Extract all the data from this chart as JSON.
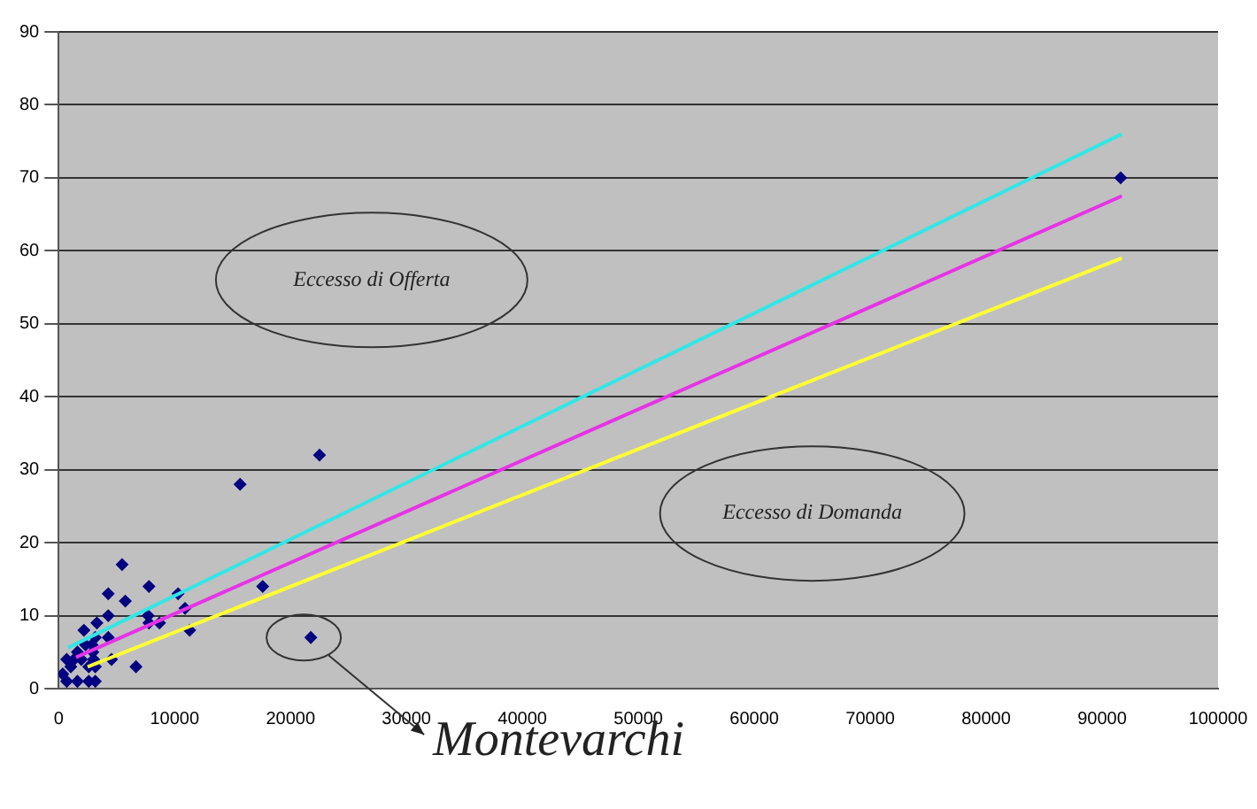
{
  "chart_data": {
    "type": "scatter",
    "marker": "diamond",
    "grid": "y",
    "legend": false,
    "xlim": [
      0,
      100000
    ],
    "xticks": [
      0,
      10000,
      20000,
      30000,
      40000,
      50000,
      60000,
      70000,
      80000,
      90000,
      100000
    ],
    "ylim": [
      0,
      90
    ],
    "yticks": [
      0,
      10,
      20,
      30,
      40,
      50,
      60,
      70,
      80,
      90
    ],
    "series": [
      {
        "color": "#000080",
        "x": [
          350,
          700,
          700,
          1050,
          1330,
          1620,
          1620,
          1960,
          2180,
          2320,
          2600,
          2600,
          2880,
          3160,
          2950,
          3020,
          3160,
          3160,
          3300,
          4280,
          4280,
          4280,
          4560,
          5470,
          5750,
          6670,
          7720,
          7790,
          7790,
          8700,
          10300,
          10900,
          11300,
          15650,
          17600,
          21750,
          22500,
          91600
        ],
        "values": [
          2,
          4,
          1,
          3,
          4,
          1,
          5,
          4,
          8,
          6,
          1,
          3,
          6,
          1,
          5,
          4,
          3,
          7,
          9,
          13,
          10,
          7,
          4,
          17,
          12,
          3,
          10,
          14,
          9,
          9,
          13,
          11,
          8,
          28,
          14,
          7,
          32,
          70
        ]
      },
      {
        "type": "line",
        "marker": "none",
        "color": "#33e6e6",
        "x": [
          800,
          91700
        ],
        "values": [
          5.6,
          76
        ]
      },
      {
        "type": "line",
        "marker": "none",
        "color": "#e633e6",
        "x": [
          1500,
          91700
        ],
        "values": [
          4.3,
          67.5
        ]
      },
      {
        "type": "line",
        "marker": "none",
        "color": "#ffff33",
        "x": [
          2500,
          91700
        ],
        "values": [
          3,
          59
        ]
      }
    ],
    "annotations": [
      "Eccesso di Offerta",
      "Eccesso di Domanda",
      {
        "text": "Montevarchi",
        "x": 21750,
        "y": 7
      }
    ]
  }
}
